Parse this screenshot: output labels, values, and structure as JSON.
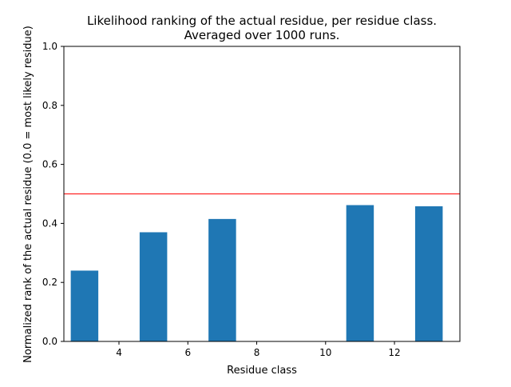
{
  "chart_data": {
    "type": "bar",
    "title": [
      "Likelihood ranking of the actual residue, per residue class.",
      "Averaged over 1000 runs."
    ],
    "xlabel": "Residue class",
    "ylabel": "Normalized rank of the actual residue (0.0 = most likely residue)",
    "xlim": [
      2.4,
      13.9
    ],
    "ylim": [
      0,
      1.0
    ],
    "xticks": [
      4,
      6,
      8,
      10,
      12
    ],
    "yticks": [
      0.0,
      0.2,
      0.4,
      0.6,
      0.8,
      1.0
    ],
    "bar_width": 0.8,
    "x": [
      3,
      5,
      7,
      11,
      13
    ],
    "values": [
      0.24,
      0.37,
      0.415,
      0.462,
      0.458
    ],
    "bar_color": "#1f77b4",
    "reference_line": {
      "y": 0.5,
      "color": "#ff0000"
    },
    "grid": false
  }
}
